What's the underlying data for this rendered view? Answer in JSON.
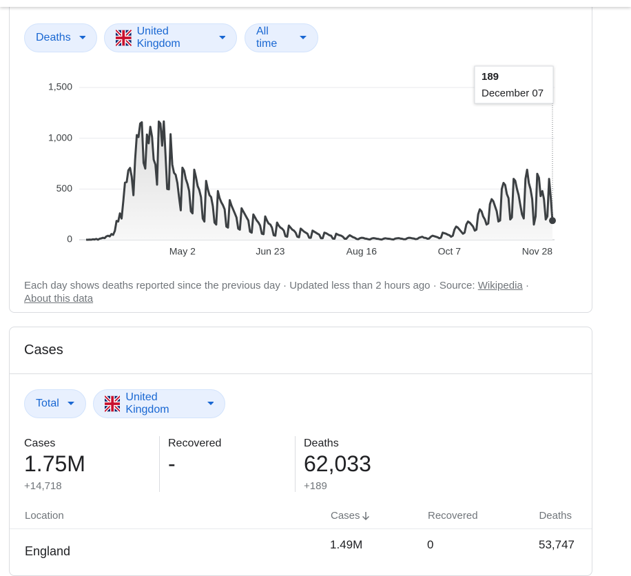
{
  "filters": [
    "Deaths",
    "United Kingdom",
    "All time"
  ],
  "chart_data": {
    "type": "line",
    "color": "#3c4043",
    "grid": true,
    "ylim": [
      0,
      1500
    ],
    "yticks": [
      0,
      500,
      {
        "value": 1000,
        "label": "1,000"
      },
      {
        "value": 1500,
        "label": "1,500"
      }
    ],
    "categories": [
      null,
      null,
      null,
      null,
      null,
      null,
      null,
      null,
      null,
      null,
      null,
      null,
      null,
      null,
      null,
      null,
      null,
      null,
      null,
      null,
      null,
      null,
      null,
      null,
      null,
      null,
      null,
      null,
      null,
      null,
      null,
      null,
      null,
      null,
      null,
      null,
      null,
      null,
      null,
      null,
      null,
      null,
      null,
      null,
      null,
      null,
      null,
      null,
      null,
      null,
      null,
      null,
      null,
      null,
      null,
      null,
      null,
      "May 2",
      null,
      null,
      null,
      null,
      null,
      null,
      null,
      null,
      null,
      null,
      null,
      null,
      null,
      null,
      null,
      null,
      null,
      null,
      null,
      null,
      null,
      null,
      null,
      null,
      null,
      null,
      null,
      null,
      null,
      null,
      null,
      null,
      null,
      null,
      null,
      null,
      null,
      null,
      null,
      null,
      null,
      null,
      null,
      null,
      null,
      null,
      null,
      null,
      null,
      null,
      null,
      "Jun 23",
      null,
      null,
      null,
      null,
      null,
      null,
      null,
      null,
      null,
      null,
      null,
      null,
      null,
      null,
      null,
      null,
      null,
      null,
      null,
      null,
      null,
      null,
      null,
      null,
      null,
      null,
      null,
      null,
      null,
      null,
      null,
      null,
      null,
      null,
      null,
      null,
      null,
      null,
      null,
      null,
      null,
      null,
      null,
      null,
      null,
      null,
      null,
      null,
      null,
      null,
      null,
      null,
      null,
      "Aug 16",
      null,
      null,
      null,
      null,
      null,
      null,
      null,
      null,
      null,
      null,
      null,
      null,
      null,
      null,
      null,
      null,
      null,
      null,
      null,
      null,
      null,
      null,
      null,
      null,
      null,
      null,
      null,
      null,
      null,
      null,
      null,
      null,
      null,
      null,
      null,
      null,
      null,
      null,
      null,
      null,
      null,
      null,
      null,
      null,
      null,
      null,
      null,
      null,
      null,
      null,
      null,
      "Oct 7",
      null,
      null,
      null,
      null,
      null,
      null,
      null,
      null,
      null,
      null,
      null,
      null,
      null,
      null,
      null,
      null,
      null,
      null,
      null,
      null,
      null,
      null,
      null,
      null,
      null,
      null,
      null,
      null,
      null,
      null,
      null,
      null,
      null,
      null,
      null,
      null,
      null,
      null,
      null,
      null,
      null,
      null,
      null,
      null,
      null,
      null,
      null,
      null,
      null,
      null,
      null,
      "Nov 28",
      null,
      null,
      null,
      null,
      null,
      null,
      null,
      null,
      null
    ],
    "values": [
      1,
      0,
      2,
      1,
      5,
      3,
      8,
      1,
      10,
      14,
      20,
      16,
      33,
      40,
      33,
      56,
      48,
      87,
      186,
      180,
      260,
      209,
      381,
      563,
      569,
      684,
      708,
      621,
      439,
      786,
      1032,
      1011,
      1145,
      1158,
      758,
      701,
      1037,
      950,
      1113,
      1017,
      790,
      742,
      543,
      1165,
      1145,
      927,
      1166,
      834,
      500,
      497,
      1040,
      740,
      660,
      640,
      560,
      420,
      290,
      710,
      680,
      600,
      550,
      480,
      280,
      260,
      690,
      620,
      530,
      490,
      420,
      210,
      180,
      580,
      500,
      440,
      420,
      330,
      170,
      150,
      480,
      410,
      370,
      340,
      300,
      130,
      120,
      390,
      340,
      300,
      260,
      220,
      110,
      100,
      310,
      280,
      250,
      220,
      190,
      80,
      70,
      250,
      220,
      190,
      170,
      140,
      60,
      55,
      230,
      190,
      160,
      150,
      120,
      45,
      40,
      170,
      140,
      120,
      110,
      90,
      35,
      30,
      140,
      120,
      100,
      90,
      70,
      30,
      25,
      110,
      95,
      80,
      70,
      60,
      20,
      20,
      90,
      80,
      70,
      60,
      50,
      15,
      15,
      70,
      65,
      55,
      45,
      40,
      12,
      10,
      60,
      50,
      45,
      40,
      30,
      10,
      10,
      30,
      45,
      35,
      25,
      20,
      8,
      5,
      15,
      20,
      18,
      12,
      10,
      5,
      3,
      12,
      16,
      14,
      10,
      8,
      4,
      2,
      10,
      15,
      12,
      10,
      8,
      4,
      3,
      12,
      14,
      16,
      12,
      10,
      5,
      5,
      15,
      20,
      18,
      14,
      12,
      6,
      8,
      20,
      25,
      30,
      20,
      18,
      10,
      12,
      30,
      40,
      35,
      30,
      25,
      15,
      20,
      70,
      65,
      60,
      50,
      45,
      30,
      40,
      100,
      130,
      120,
      100,
      80,
      60,
      70,
      150,
      180,
      170,
      150,
      130,
      90,
      100,
      250,
      300,
      280,
      230,
      200,
      150,
      160,
      350,
      400,
      380,
      330,
      280,
      180,
      190,
      500,
      560,
      540,
      450,
      410,
      200,
      220,
      600,
      580,
      500,
      440,
      340,
      250,
      210,
      600,
      690,
      560,
      500,
      400,
      150,
      230,
      650,
      610,
      430,
      480,
      400,
      200,
      230,
      600,
      420,
      189
    ],
    "tooltip": {
      "label": "December 07"
    }
  },
  "footer": {
    "note": "Each day shows deaths reported since the previous day · Updated less than 2 hours ago · Source:",
    "source": "Wikipedia",
    "separator": "·",
    "about": "About this data"
  },
  "cases": {
    "title": "Cases",
    "filters": [
      "Total",
      "United Kingdom"
    ],
    "stats": [
      {
        "label": "Cases",
        "value": "1.75M",
        "change": "+14,718"
      },
      {
        "label": "Recovered",
        "value": "-"
      },
      {
        "label": "Deaths",
        "value": "62,033",
        "change": "+189"
      }
    ],
    "table": {
      "header": [
        "Location",
        "Cases",
        "Recovered",
        "Deaths"
      ],
      "rows": [
        [
          "England",
          "1.49M",
          "0",
          "53,747"
        ]
      ]
    }
  }
}
